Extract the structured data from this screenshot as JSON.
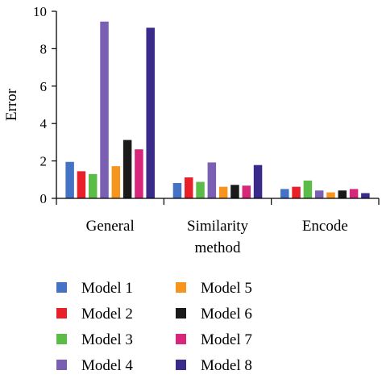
{
  "chart_data": {
    "type": "bar",
    "title": "",
    "xlabel": "",
    "ylabel": "Error",
    "ylim": [
      0,
      10
    ],
    "yticks": [
      0,
      2,
      4,
      6,
      8,
      10
    ],
    "grid": false,
    "legend_position": "bottom",
    "categories": [
      [
        "General"
      ],
      [
        "Similarity",
        "method"
      ],
      [
        "Encode"
      ]
    ],
    "series": [
      {
        "name": "Model 1",
        "color": "#4472c4",
        "values": [
          1.95,
          0.82,
          0.5
        ]
      },
      {
        "name": "Model 2",
        "color": "#e8202a",
        "values": [
          1.45,
          1.12,
          0.62
        ]
      },
      {
        "name": "Model 3",
        "color": "#5bbd47",
        "values": [
          1.3,
          0.88,
          0.95
        ]
      },
      {
        "name": "Model 4",
        "color": "#7b5fb3",
        "values": [
          9.45,
          1.92,
          0.42
        ]
      },
      {
        "name": "Model 5",
        "color": "#f7941d",
        "values": [
          1.72,
          0.62,
          0.32
        ]
      },
      {
        "name": "Model 6",
        "color": "#1a1a1a",
        "values": [
          3.12,
          0.72,
          0.42
        ]
      },
      {
        "name": "Model 7",
        "color": "#d6277a",
        "values": [
          2.62,
          0.68,
          0.5
        ]
      },
      {
        "name": "Model 8",
        "color": "#3a2a8a",
        "values": [
          9.12,
          1.78,
          0.28
        ]
      }
    ]
  }
}
